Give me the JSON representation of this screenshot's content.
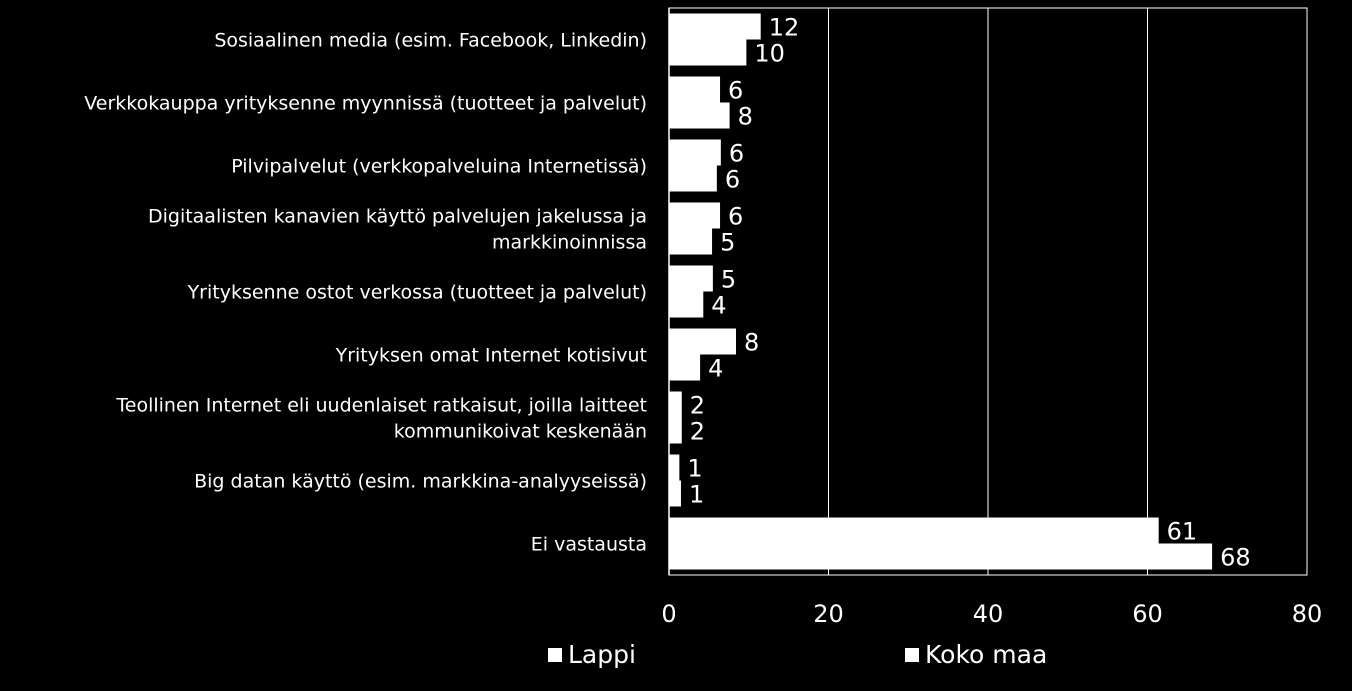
{
  "chart_data": {
    "type": "bar",
    "orientation": "horizontal",
    "categories": [
      "Sosiaalinen media (esim. Facebook, Linkedin)",
      "Verkkokauppa yrityksenne myynnissä (tuotteet ja palvelut)",
      "Pilvipalvelut  (verkkopalveluina Internetissä)",
      "Digitaalisten kanavien käyttö palvelujen jakelussa ja markkinoinnissa",
      "Yrityksenne ostot verkossa (tuotteet ja palvelut)",
      "Yrityksen omat Internet kotisivut",
      "Teollinen Internet eli uudenlaiset ratkaisut, joilla laitteet kommunikoivat keskenään",
      "Big datan käyttö (esim. markkina-analyyseissä)",
      "Ei vastausta"
    ],
    "category_lines": [
      [
        "Sosiaalinen media (esim. Facebook, Linkedin)"
      ],
      [
        "Verkkokauppa yrityksenne myynnissä (tuotteet ja palvelut)"
      ],
      [
        "Pilvipalvelut  (verkkopalveluina Internetissä)"
      ],
      [
        "Digitaalisten kanavien käyttö palvelujen jakelussa ja",
        "markkinoinnissa"
      ],
      [
        "Yrityksenne ostot verkossa (tuotteet ja palvelut)"
      ],
      [
        "Yrityksen omat Internet kotisivut"
      ],
      [
        "Teollinen Internet eli uudenlaiset ratkaisut, joilla laitteet",
        "kommunikoivat keskenään"
      ],
      [
        "Big datan käyttö (esim. markkina-analyyseissä)"
      ],
      [
        "Ei vastausta"
      ]
    ],
    "series": [
      {
        "name": "Lappi",
        "values": [
          11.5,
          6.4,
          6.5,
          6.4,
          5.5,
          8.4,
          1.6,
          1.3,
          61.4
        ],
        "labels": [
          "12",
          "6",
          "6",
          "6",
          "5",
          "8",
          "2",
          "1",
          "61"
        ],
        "color": "#ffffff"
      },
      {
        "name": "Koko maa",
        "values": [
          9.7,
          7.6,
          6.0,
          5.4,
          4.3,
          3.9,
          1.6,
          1.5,
          68.1
        ],
        "labels": [
          "10",
          "8",
          "6",
          "5",
          "4",
          "4",
          "2",
          "1",
          "68"
        ],
        "color": "#ffffff"
      }
    ],
    "xlim": [
      0,
      80
    ],
    "xticks": [
      "0",
      "20",
      "40",
      "60",
      "80"
    ],
    "grid": true,
    "legend": "bottom",
    "title": "",
    "xlabel": "",
    "ylabel": ""
  },
  "legend": {
    "items": [
      "Lappi",
      "Koko maa"
    ]
  }
}
